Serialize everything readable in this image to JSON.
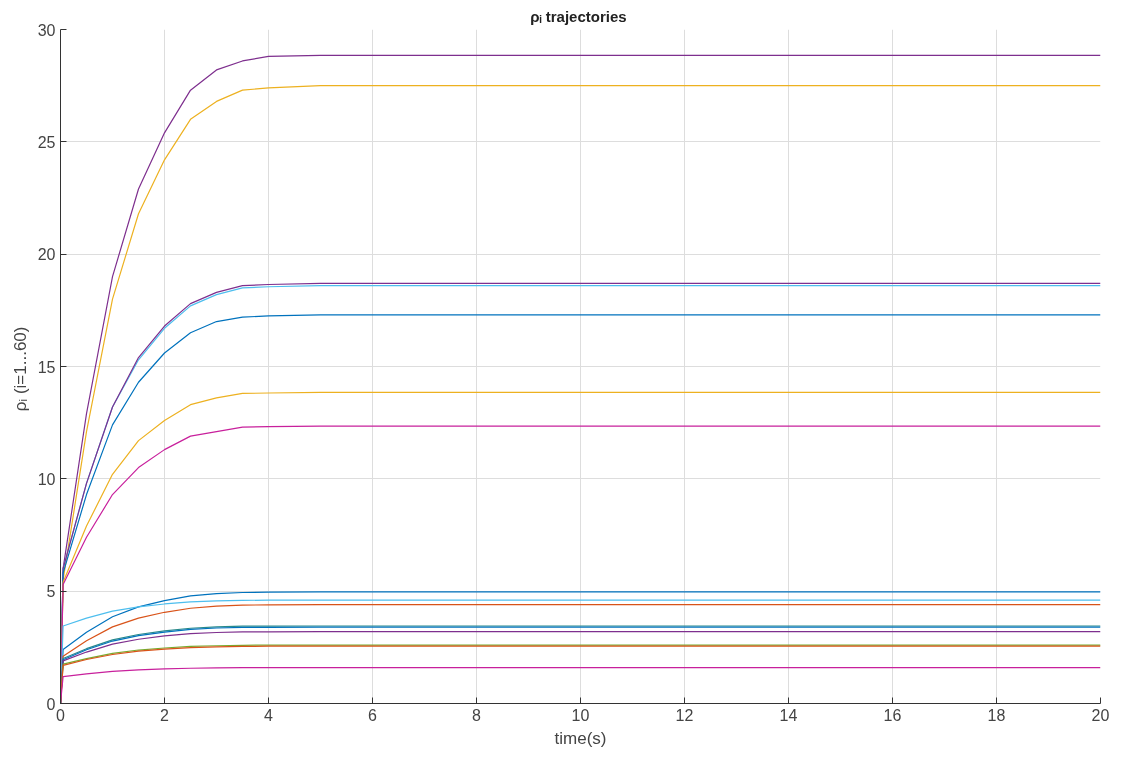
{
  "chart_data": {
    "type": "line",
    "title": "ρᵢ  trajectories",
    "xlabel": "time(s)",
    "ylabel": "ρᵢ  (i=1...60)",
    "x": [
      0,
      0.05,
      0.5,
      1,
      1.5,
      2,
      2.5,
      3,
      3.5,
      4,
      5,
      8,
      20
    ],
    "xlim": [
      0,
      20
    ],
    "ylim": [
      0,
      30
    ],
    "xticks": [
      0,
      2,
      4,
      6,
      8,
      10,
      12,
      14,
      16,
      18,
      20
    ],
    "yticks": [
      0,
      5,
      10,
      15,
      20,
      25,
      30
    ],
    "grid": true,
    "line_style": "solid",
    "series": [
      {
        "color": "#7e2f8e",
        "values": [
          0,
          6,
          12.9,
          19.0,
          22.9,
          25.4,
          27.3,
          28.2,
          28.6,
          28.8,
          28.85,
          28.85,
          28.85
        ]
      },
      {
        "color": "#edb120",
        "values": [
          0,
          5.5,
          12.1,
          18.0,
          21.8,
          24.2,
          26.0,
          26.8,
          27.3,
          27.4,
          27.5,
          27.5,
          27.5
        ]
      },
      {
        "color": "#4dbeee",
        "values": [
          0,
          6,
          9.8,
          13.2,
          15.3,
          16.7,
          17.7,
          18.2,
          18.5,
          18.55,
          18.6,
          18.6,
          18.6
        ]
      },
      {
        "color": "#7e2f8e",
        "values": [
          0,
          6,
          9.8,
          13.2,
          15.4,
          16.8,
          17.8,
          18.3,
          18.6,
          18.65,
          18.7,
          18.7,
          18.7
        ]
      },
      {
        "color": "#0072bd",
        "values": [
          0,
          5.8,
          9.3,
          12.4,
          14.3,
          15.6,
          16.5,
          17.0,
          17.2,
          17.25,
          17.3,
          17.3,
          17.3
        ]
      },
      {
        "color": "#edb120",
        "values": [
          0,
          5.4,
          7.9,
          10.2,
          11.7,
          12.6,
          13.3,
          13.6,
          13.8,
          13.82,
          13.85,
          13.85,
          13.85
        ]
      },
      {
        "color": "#c8209c",
        "values": [
          0,
          5.3,
          7.4,
          9.3,
          10.5,
          11.3,
          11.9,
          12.1,
          12.3,
          12.32,
          12.35,
          12.35,
          12.35
        ]
      },
      {
        "color": "#0072bd",
        "values": [
          0,
          2.4,
          3.17,
          3.86,
          4.3,
          4.58,
          4.79,
          4.89,
          4.94,
          4.96,
          4.97,
          4.97,
          4.97
        ]
      },
      {
        "color": "#4dbeee",
        "values": [
          0,
          3.45,
          3.8,
          4.11,
          4.3,
          4.43,
          4.52,
          4.57,
          4.59,
          4.6,
          4.6,
          4.6,
          4.6
        ]
      },
      {
        "color": "#d95319",
        "values": [
          0,
          2.1,
          2.79,
          3.41,
          3.8,
          4.06,
          4.24,
          4.33,
          4.38,
          4.39,
          4.4,
          4.4,
          4.4
        ]
      },
      {
        "color": "#2a8a8a",
        "values": [
          0,
          2.0,
          2.44,
          2.83,
          3.07,
          3.23,
          3.35,
          3.41,
          3.44,
          3.44,
          3.45,
          3.45,
          3.45
        ]
      },
      {
        "color": "#0072bd",
        "values": [
          0,
          1.95,
          2.39,
          2.78,
          3.02,
          3.18,
          3.3,
          3.36,
          3.39,
          3.39,
          3.4,
          3.4,
          3.4
        ]
      },
      {
        "color": "#7e2f8e",
        "values": [
          0,
          1.9,
          2.29,
          2.64,
          2.86,
          3.01,
          3.11,
          3.16,
          3.19,
          3.19,
          3.2,
          3.2,
          3.2
        ]
      },
      {
        "color": "#77ac30",
        "values": [
          0,
          1.75,
          2.0,
          2.23,
          2.38,
          2.47,
          2.54,
          2.57,
          2.59,
          2.6,
          2.6,
          2.6,
          2.6
        ]
      },
      {
        "color": "#d95319",
        "values": [
          0,
          1.7,
          1.96,
          2.18,
          2.33,
          2.42,
          2.49,
          2.52,
          2.54,
          2.55,
          2.55,
          2.55,
          2.55
        ]
      },
      {
        "color": "#c8209c",
        "values": [
          0,
          1.2,
          1.32,
          1.43,
          1.5,
          1.54,
          1.57,
          1.59,
          1.6,
          1.6,
          1.6,
          1.6,
          1.6
        ]
      }
    ]
  }
}
